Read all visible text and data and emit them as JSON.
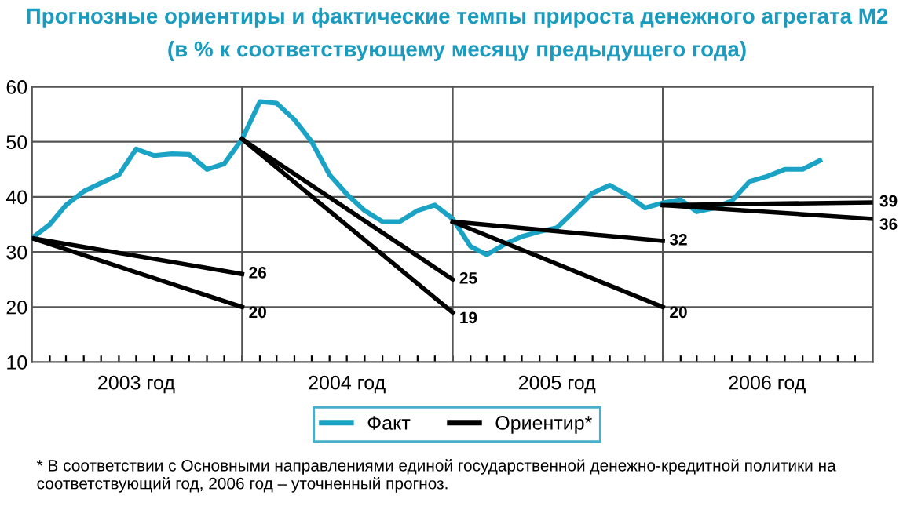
{
  "chart_data": {
    "type": "line",
    "title": "Прогнозные ориентиры и фактические темпы прироста денежного агрегата М2",
    "subtitle": "(в % к соответствующему месяцу предыдущего года)",
    "x": [
      "2003-01",
      "2003-02",
      "2003-03",
      "2003-04",
      "2003-05",
      "2003-06",
      "2003-07",
      "2003-08",
      "2003-09",
      "2003-10",
      "2003-11",
      "2003-12",
      "2004-01",
      "2004-02",
      "2004-03",
      "2004-04",
      "2004-05",
      "2004-06",
      "2004-07",
      "2004-08",
      "2004-09",
      "2004-10",
      "2004-11",
      "2004-12",
      "2005-01",
      "2005-02",
      "2005-03",
      "2005-04",
      "2005-05",
      "2005-06",
      "2005-07",
      "2005-08",
      "2005-09",
      "2005-10",
      "2005-11",
      "2005-12",
      "2006-01",
      "2006-02",
      "2006-03",
      "2006-04",
      "2006-05",
      "2006-06",
      "2006-07",
      "2006-08",
      "2006-09",
      "2006-10"
    ],
    "series": [
      {
        "name": "Факт",
        "color": "#1ba3c6",
        "values": [
          32.5,
          35,
          38.5,
          41,
          42.5,
          44,
          48.7,
          47.5,
          47.8,
          47.7,
          45,
          46,
          50.5,
          57.3,
          57,
          54,
          50,
          44,
          40.5,
          37.5,
          35.5,
          35.5,
          37.5,
          38.5,
          36,
          31,
          29.5,
          31.4,
          32.8,
          33.7,
          34.4,
          37.5,
          40.7,
          42.1,
          40.3,
          38,
          38.9,
          39.5,
          37.3,
          38,
          39.3,
          42.8,
          43.7,
          45,
          45,
          46.6
        ]
      },
      {
        "name": "Ориентир*",
        "color": "#000000",
        "x": [
          "2003-01",
          "2004-01"
        ],
        "values": [
          32.5,
          26
        ],
        "value_labels": [
          null,
          "26"
        ]
      },
      {
        "color": "#000000",
        "x": [
          "2003-01",
          "2004-01"
        ],
        "values": [
          32.5,
          20
        ],
        "value_labels": [
          null,
          "20"
        ]
      },
      {
        "color": "#000000",
        "x": [
          "2004-01",
          "2005-01"
        ],
        "values": [
          50.5,
          25
        ],
        "value_labels": [
          null,
          "25"
        ]
      },
      {
        "color": "#000000",
        "x": [
          "2004-01",
          "2005-01"
        ],
        "values": [
          50.5,
          19
        ],
        "value_labels": [
          null,
          "19"
        ]
      },
      {
        "color": "#000000",
        "x": [
          "2005-01",
          "2006-01"
        ],
        "values": [
          35.5,
          32
        ],
        "value_labels": [
          null,
          "32"
        ]
      },
      {
        "color": "#000000",
        "x": [
          "2005-01",
          "2006-01"
        ],
        "values": [
          35.5,
          20
        ],
        "value_labels": [
          null,
          "20"
        ]
      },
      {
        "color": "#000000",
        "x": [
          "2006-01",
          "2007-01"
        ],
        "values": [
          38.5,
          39
        ],
        "value_labels": [
          null,
          "39"
        ]
      },
      {
        "color": "#000000",
        "x": [
          "2006-01",
          "2007-01"
        ],
        "values": [
          38.5,
          36
        ],
        "value_labels": [
          null,
          "36"
        ]
      }
    ],
    "xlim": [
      "2003-01",
      "2007-01"
    ],
    "xticks": [
      {
        "value": "2003-02",
        "label": null
      },
      {
        "value": "2003-03",
        "label": null
      },
      {
        "value": "2003-04",
        "label": null
      },
      {
        "value": "2003-05",
        "label": null
      },
      {
        "value": "2003-06",
        "label": null
      },
      {
        "value": "2003-07",
        "label": "2003 год"
      },
      {
        "value": "2003-08",
        "label": null
      },
      {
        "value": "2003-09",
        "label": null
      },
      {
        "value": "2003-10",
        "label": null
      },
      {
        "value": "2003-11",
        "label": null
      },
      {
        "value": "2003-12",
        "label": null
      },
      {
        "value": "2004-01",
        "label": null
      },
      {
        "value": "2004-02",
        "label": null
      },
      {
        "value": "2004-03",
        "label": null
      },
      {
        "value": "2004-04",
        "label": null
      },
      {
        "value": "2004-05",
        "label": null
      },
      {
        "value": "2004-06",
        "label": null
      },
      {
        "value": "2004-07",
        "label": "2004 год"
      },
      {
        "value": "2004-08",
        "label": null
      },
      {
        "value": "2004-09",
        "label": null
      },
      {
        "value": "2004-10",
        "label": null
      },
      {
        "value": "2004-11",
        "label": null
      },
      {
        "value": "2004-12",
        "label": null
      },
      {
        "value": "2005-01",
        "label": null
      },
      {
        "value": "2005-02",
        "label": null
      },
      {
        "value": "2005-03",
        "label": null
      },
      {
        "value": "2005-04",
        "label": null
      },
      {
        "value": "2005-05",
        "label": null
      },
      {
        "value": "2005-06",
        "label": null
      },
      {
        "value": "2005-07",
        "label": "2005 год"
      },
      {
        "value": "2005-08",
        "label": null
      },
      {
        "value": "2005-09",
        "label": null
      },
      {
        "value": "2005-10",
        "label": null
      },
      {
        "value": "2005-11",
        "label": null
      },
      {
        "value": "2005-12",
        "label": null
      },
      {
        "value": "2006-01",
        "label": null
      },
      {
        "value": "2006-02",
        "label": null
      },
      {
        "value": "2006-03",
        "label": null
      },
      {
        "value": "2006-04",
        "label": null
      },
      {
        "value": "2006-05",
        "label": null
      },
      {
        "value": "2006-06",
        "label": null
      },
      {
        "value": "2006-07",
        "label": "2006 год"
      },
      {
        "value": "2006-08",
        "label": null
      },
      {
        "value": "2006-09",
        "label": null
      },
      {
        "value": "2006-10",
        "label": null
      },
      {
        "value": "2006-11",
        "label": null
      },
      {
        "value": "2006-12",
        "label": null
      }
    ],
    "ylim": [
      10,
      60
    ],
    "yticks": [
      10,
      20,
      30,
      40,
      50,
      60
    ],
    "ref_lines": [
      {
        "axis": "x",
        "value": "2004-01",
        "color": "#555555"
      },
      {
        "axis": "x",
        "value": "2005-01",
        "color": "#555555"
      },
      {
        "axis": "x",
        "value": "2006-01",
        "color": "#555555"
      }
    ],
    "grid": "y",
    "legend": "bottom",
    "annotations": [
      "* В соответствии с Основными направлениями единой государственной денежно-кредитной политики на соответствующий год, 2006 год – уточненный прогноз."
    ]
  }
}
